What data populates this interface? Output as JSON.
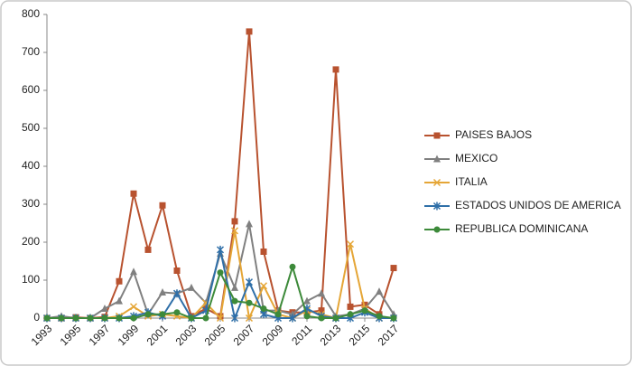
{
  "chart_data": {
    "type": "line",
    "x": [
      1993,
      1994,
      1995,
      1996,
      1997,
      1998,
      1999,
      2000,
      2001,
      2002,
      2003,
      2004,
      2005,
      2006,
      2007,
      2008,
      2009,
      2010,
      2011,
      2012,
      2013,
      2014,
      2015,
      2016,
      2017
    ],
    "xlim": [
      1993,
      2017
    ],
    "xticks": [
      1993,
      1995,
      1997,
      1999,
      2001,
      2003,
      2005,
      2007,
      2009,
      2011,
      2013,
      2015,
      2017
    ],
    "ylim": [
      0,
      800
    ],
    "yticks": [
      0,
      100,
      200,
      300,
      400,
      500,
      600,
      700,
      800
    ],
    "grid": false,
    "legend": "right",
    "series": [
      {
        "name": "PAISES BAJOS",
        "color": "#b8522f",
        "marker": "square",
        "values": [
          0,
          0,
          2,
          0,
          3,
          97,
          328,
          180,
          297,
          125,
          5,
          25,
          5,
          255,
          755,
          175,
          20,
          15,
          15,
          20,
          655,
          30,
          35,
          10,
          132
        ]
      },
      {
        "name": "MEXICO",
        "color": "#808080",
        "marker": "triangle",
        "values": [
          0,
          5,
          0,
          0,
          25,
          45,
          122,
          10,
          68,
          65,
          80,
          40,
          170,
          80,
          248,
          20,
          20,
          10,
          45,
          65,
          5,
          10,
          25,
          70,
          10
        ]
      },
      {
        "name": "ITALIA",
        "color": "#e5a637",
        "marker": "x",
        "values": [
          0,
          0,
          0,
          0,
          0,
          5,
          30,
          5,
          10,
          5,
          0,
          40,
          0,
          230,
          0,
          85,
          10,
          0,
          20,
          10,
          0,
          195,
          25,
          0,
          0
        ]
      },
      {
        "name": "ESTADOS UNIDOS DE AMERICA",
        "color": "#2f6fa8",
        "marker": "star",
        "values": [
          0,
          0,
          0,
          0,
          0,
          0,
          5,
          15,
          5,
          65,
          0,
          20,
          180,
          0,
          95,
          10,
          0,
          0,
          25,
          5,
          0,
          0,
          15,
          0,
          0
        ]
      },
      {
        "name": "REPUBLICA DOMINICANA",
        "color": "#3d8a3a",
        "marker": "circle",
        "values": [
          0,
          0,
          0,
          0,
          0,
          0,
          0,
          10,
          10,
          15,
          0,
          0,
          120,
          45,
          40,
          25,
          10,
          135,
          5,
          0,
          0,
          10,
          20,
          5,
          0
        ]
      }
    ]
  }
}
